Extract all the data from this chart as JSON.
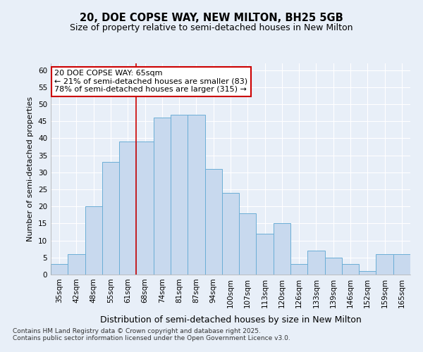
{
  "title": "20, DOE COPSE WAY, NEW MILTON, BH25 5GB",
  "subtitle": "Size of property relative to semi-detached houses in New Milton",
  "xlabel": "Distribution of semi-detached houses by size in New Milton",
  "ylabel": "Number of semi-detached properties",
  "categories": [
    "35sqm",
    "42sqm",
    "48sqm",
    "55sqm",
    "61sqm",
    "68sqm",
    "74sqm",
    "81sqm",
    "87sqm",
    "94sqm",
    "100sqm",
    "107sqm",
    "113sqm",
    "120sqm",
    "126sqm",
    "133sqm",
    "139sqm",
    "146sqm",
    "152sqm",
    "159sqm",
    "165sqm"
  ],
  "values": [
    3,
    6,
    20,
    33,
    39,
    39,
    46,
    47,
    47,
    31,
    24,
    18,
    12,
    15,
    3,
    7,
    5,
    3,
    1,
    6,
    6
  ],
  "bar_color": "#c8d9ee",
  "bar_edge_color": "#6baed6",
  "vline_bin_index": 5,
  "annotation_title": "20 DOE COPSE WAY: 65sqm",
  "annotation_line1": "← 21% of semi-detached houses are smaller (83)",
  "annotation_line2": "78% of semi-detached houses are larger (315) →",
  "annotation_box_color": "#ffffff",
  "annotation_box_edge_color": "#cc0000",
  "vline_color": "#cc0000",
  "ylim": [
    0,
    62
  ],
  "yticks": [
    0,
    5,
    10,
    15,
    20,
    25,
    30,
    35,
    40,
    45,
    50,
    55,
    60
  ],
  "footnote1": "Contains HM Land Registry data © Crown copyright and database right 2025.",
  "footnote2": "Contains public sector information licensed under the Open Government Licence v3.0.",
  "bg_color": "#e8eff8",
  "fig_bg_color": "#e8eff8",
  "grid_color": "#ffffff",
  "title_fontsize": 10.5,
  "subtitle_fontsize": 9,
  "xlabel_fontsize": 9,
  "ylabel_fontsize": 8,
  "tick_fontsize": 7.5,
  "annot_fontsize": 8,
  "footnote_fontsize": 6.5
}
